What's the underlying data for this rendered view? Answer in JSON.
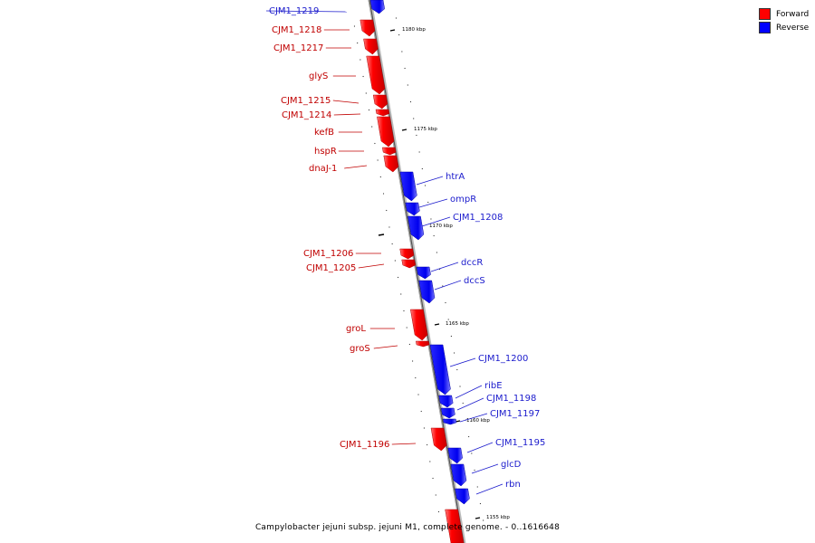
{
  "legend": {
    "forward": {
      "label": "Forward",
      "color": "#ff0000"
    },
    "reverse": {
      "label": "Reverse",
      "color": "#0000ff"
    }
  },
  "caption": "Campylobacter jejuni subsp. jejuni M1, complete genome. - 0..1616648",
  "ticks": [
    "1180 kbp",
    "1175 kbp",
    "1170 kbp",
    "1165 kbp",
    "1160 kbp",
    "1155 kbp"
  ],
  "genes": [
    {
      "name": "CJM1_1219",
      "strand": "reverse"
    },
    {
      "name": "CJM1_1218",
      "strand": "forward"
    },
    {
      "name": "CJM1_1217",
      "strand": "forward"
    },
    {
      "name": "glyS",
      "strand": "forward"
    },
    {
      "name": "CJM1_1215",
      "strand": "forward"
    },
    {
      "name": "CJM1_1214",
      "strand": "forward"
    },
    {
      "name": "kefB",
      "strand": "forward"
    },
    {
      "name": "hspR",
      "strand": "forward"
    },
    {
      "name": "dnaJ-1",
      "strand": "forward"
    },
    {
      "name": "htrA",
      "strand": "reverse"
    },
    {
      "name": "ompR",
      "strand": "reverse"
    },
    {
      "name": "CJM1_1208",
      "strand": "reverse"
    },
    {
      "name": "CJM1_1206",
      "strand": "forward"
    },
    {
      "name": "CJM1_1205",
      "strand": "forward"
    },
    {
      "name": "dccR",
      "strand": "reverse"
    },
    {
      "name": "dccS",
      "strand": "reverse"
    },
    {
      "name": "groL",
      "strand": "forward"
    },
    {
      "name": "groS",
      "strand": "forward"
    },
    {
      "name": "CJM1_1200",
      "strand": "reverse"
    },
    {
      "name": "ribE",
      "strand": "reverse"
    },
    {
      "name": "CJM1_1198",
      "strand": "reverse"
    },
    {
      "name": "CJM1_1197",
      "strand": "reverse"
    },
    {
      "name": "CJM1_1196",
      "strand": "forward"
    },
    {
      "name": "CJM1_1195",
      "strand": "reverse"
    },
    {
      "name": "glcD",
      "strand": "reverse"
    },
    {
      "name": "rbn",
      "strand": "reverse"
    }
  ]
}
